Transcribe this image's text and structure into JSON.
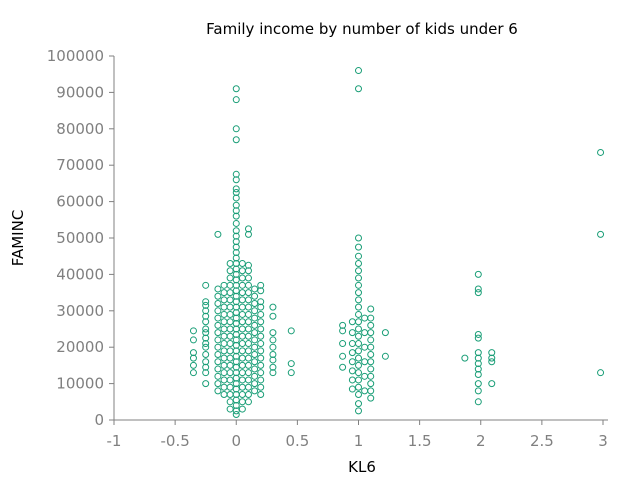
{
  "chart_data": {
    "type": "scatter",
    "title": "Family income by number of kids under 6",
    "xlabel": "KL6",
    "ylabel": "FAMINC",
    "xlim": [
      -1,
      3
    ],
    "ylim": [
      0,
      100000
    ],
    "xticks": [
      "-1",
      "-0.5",
      "0",
      "0.5",
      "1",
      "1.5",
      "2",
      "2.5",
      "3"
    ],
    "yticks": [
      "0",
      "10000",
      "20000",
      "30000",
      "40000",
      "50000",
      "60000",
      "70000",
      "80000",
      "90000",
      "100000"
    ],
    "grid": false,
    "marker": "open-circle",
    "color": "#1a9e77",
    "series": [
      {
        "points": [
          [
            -0.35,
            13000
          ],
          [
            -0.35,
            15000
          ],
          [
            -0.35,
            17000
          ],
          [
            -0.35,
            18500
          ],
          [
            -0.35,
            22000
          ],
          [
            -0.35,
            24500
          ],
          [
            -0.25,
            10000
          ],
          [
            -0.25,
            13000
          ],
          [
            -0.25,
            14500
          ],
          [
            -0.25,
            16000
          ],
          [
            -0.25,
            18000
          ],
          [
            -0.25,
            20000
          ],
          [
            -0.25,
            21000
          ],
          [
            -0.25,
            22500
          ],
          [
            -0.25,
            24000
          ],
          [
            -0.25,
            25000
          ],
          [
            -0.25,
            27000
          ],
          [
            -0.25,
            28500
          ],
          [
            -0.25,
            30000
          ],
          [
            -0.25,
            31500
          ],
          [
            -0.25,
            32500
          ],
          [
            -0.25,
            37000
          ],
          [
            -0.15,
            8000
          ],
          [
            -0.15,
            10000
          ],
          [
            -0.15,
            12000
          ],
          [
            -0.15,
            14000
          ],
          [
            -0.15,
            16000
          ],
          [
            -0.15,
            18000
          ],
          [
            -0.15,
            20000
          ],
          [
            -0.15,
            22000
          ],
          [
            -0.15,
            24000
          ],
          [
            -0.15,
            26000
          ],
          [
            -0.15,
            28000
          ],
          [
            -0.15,
            30000
          ],
          [
            -0.15,
            32000
          ],
          [
            -0.15,
            34000
          ],
          [
            -0.15,
            36000
          ],
          [
            -0.15,
            51000
          ],
          [
            -0.1,
            7000
          ],
          [
            -0.1,
            9000
          ],
          [
            -0.1,
            11000
          ],
          [
            -0.1,
            13000
          ],
          [
            -0.1,
            15000
          ],
          [
            -0.1,
            17000
          ],
          [
            -0.1,
            19000
          ],
          [
            -0.1,
            21000
          ],
          [
            -0.1,
            23000
          ],
          [
            -0.1,
            25000
          ],
          [
            -0.1,
            27000
          ],
          [
            -0.1,
            29000
          ],
          [
            -0.1,
            31000
          ],
          [
            -0.1,
            33000
          ],
          [
            -0.1,
            35000
          ],
          [
            -0.1,
            37000
          ],
          [
            -0.05,
            3000
          ],
          [
            -0.05,
            5000
          ],
          [
            -0.05,
            7000
          ],
          [
            -0.05,
            9000
          ],
          [
            -0.05,
            11000
          ],
          [
            -0.05,
            13000
          ],
          [
            -0.05,
            15000
          ],
          [
            -0.05,
            17000
          ],
          [
            -0.05,
            19000
          ],
          [
            -0.05,
            21000
          ],
          [
            -0.05,
            23000
          ],
          [
            -0.05,
            25000
          ],
          [
            -0.05,
            27000
          ],
          [
            -0.05,
            29000
          ],
          [
            -0.05,
            31000
          ],
          [
            -0.05,
            33000
          ],
          [
            -0.05,
            35000
          ],
          [
            -0.05,
            37000
          ],
          [
            -0.05,
            39000
          ],
          [
            -0.05,
            41000
          ],
          [
            -0.05,
            43000
          ],
          [
            0,
            1500
          ],
          [
            0,
            2500
          ],
          [
            0,
            4000
          ],
          [
            0,
            5500
          ],
          [
            0,
            7000
          ],
          [
            0,
            8500
          ],
          [
            0,
            10000
          ],
          [
            0,
            11500
          ],
          [
            0,
            13000
          ],
          [
            0,
            14500
          ],
          [
            0,
            16000
          ],
          [
            0,
            17500
          ],
          [
            0,
            19000
          ],
          [
            0,
            20500
          ],
          [
            0,
            22000
          ],
          [
            0,
            23500
          ],
          [
            0,
            25000
          ],
          [
            0,
            26500
          ],
          [
            0,
            28000
          ],
          [
            0,
            29500
          ],
          [
            0,
            31000
          ],
          [
            0,
            32500
          ],
          [
            0,
            34000
          ],
          [
            0,
            35500
          ],
          [
            0,
            37000
          ],
          [
            0,
            38500
          ],
          [
            0,
            40000
          ],
          [
            0,
            41500
          ],
          [
            0,
            43000
          ],
          [
            0,
            44500
          ],
          [
            0,
            46000
          ],
          [
            0,
            47500
          ],
          [
            0,
            49000
          ],
          [
            0,
            50500
          ],
          [
            0,
            52000
          ],
          [
            0,
            54000
          ],
          [
            0,
            56000
          ],
          [
            0,
            57500
          ],
          [
            0,
            59000
          ],
          [
            0,
            61000
          ],
          [
            0,
            62500
          ],
          [
            0,
            63500
          ],
          [
            0,
            66000
          ],
          [
            0,
            67500
          ],
          [
            0,
            77000
          ],
          [
            0,
            80000
          ],
          [
            0,
            88000
          ],
          [
            0,
            91000
          ],
          [
            0.05,
            3000
          ],
          [
            0.05,
            5000
          ],
          [
            0.05,
            7000
          ],
          [
            0.05,
            9000
          ],
          [
            0.05,
            11000
          ],
          [
            0.05,
            13000
          ],
          [
            0.05,
            15000
          ],
          [
            0.05,
            17000
          ],
          [
            0.05,
            19000
          ],
          [
            0.05,
            21000
          ],
          [
            0.05,
            23000
          ],
          [
            0.05,
            25000
          ],
          [
            0.05,
            27000
          ],
          [
            0.05,
            29000
          ],
          [
            0.05,
            31000
          ],
          [
            0.05,
            33000
          ],
          [
            0.05,
            35000
          ],
          [
            0.05,
            37000
          ],
          [
            0.05,
            39000
          ],
          [
            0.05,
            41000
          ],
          [
            0.05,
            43000
          ],
          [
            0.1,
            5000
          ],
          [
            0.1,
            7000
          ],
          [
            0.1,
            9000
          ],
          [
            0.1,
            11000
          ],
          [
            0.1,
            13000
          ],
          [
            0.1,
            15000
          ],
          [
            0.1,
            17000
          ],
          [
            0.1,
            19000
          ],
          [
            0.1,
            21000
          ],
          [
            0.1,
            23000
          ],
          [
            0.1,
            25000
          ],
          [
            0.1,
            27000
          ],
          [
            0.1,
            29000
          ],
          [
            0.1,
            31000
          ],
          [
            0.1,
            33000
          ],
          [
            0.1,
            35000
          ],
          [
            0.1,
            37000
          ],
          [
            0.1,
            39000
          ],
          [
            0.1,
            41000
          ],
          [
            0.1,
            42500
          ],
          [
            0.1,
            51000
          ],
          [
            0.1,
            52500
          ],
          [
            0.15,
            8000
          ],
          [
            0.15,
            10000
          ],
          [
            0.15,
            12000
          ],
          [
            0.15,
            14000
          ],
          [
            0.15,
            16000
          ],
          [
            0.15,
            18000
          ],
          [
            0.15,
            20000
          ],
          [
            0.15,
            22000
          ],
          [
            0.15,
            24000
          ],
          [
            0.15,
            26000
          ],
          [
            0.15,
            28000
          ],
          [
            0.15,
            30000
          ],
          [
            0.15,
            32000
          ],
          [
            0.15,
            34000
          ],
          [
            0.15,
            36000
          ],
          [
            0.2,
            7000
          ],
          [
            0.2,
            9000
          ],
          [
            0.2,
            11000
          ],
          [
            0.2,
            13000
          ],
          [
            0.2,
            15000
          ],
          [
            0.2,
            17000
          ],
          [
            0.2,
            19000
          ],
          [
            0.2,
            21000
          ],
          [
            0.2,
            23000
          ],
          [
            0.2,
            25000
          ],
          [
            0.2,
            27000
          ],
          [
            0.2,
            29000
          ],
          [
            0.2,
            31000
          ],
          [
            0.2,
            32500
          ],
          [
            0.2,
            35500
          ],
          [
            0.2,
            37000
          ],
          [
            0.3,
            13000
          ],
          [
            0.3,
            14500
          ],
          [
            0.3,
            16500
          ],
          [
            0.3,
            18000
          ],
          [
            0.3,
            20000
          ],
          [
            0.3,
            22000
          ],
          [
            0.3,
            24000
          ],
          [
            0.3,
            28500
          ],
          [
            0.3,
            31000
          ],
          [
            0.45,
            13000
          ],
          [
            0.45,
            15500
          ],
          [
            0.45,
            24500
          ],
          [
            0.87,
            14500
          ],
          [
            0.87,
            17500
          ],
          [
            0.87,
            21000
          ],
          [
            0.87,
            24500
          ],
          [
            0.87,
            26000
          ],
          [
            0.95,
            8500
          ],
          [
            0.95,
            11000
          ],
          [
            0.95,
            13500
          ],
          [
            0.95,
            16000
          ],
          [
            0.95,
            18500
          ],
          [
            0.95,
            21000
          ],
          [
            0.95,
            24000
          ],
          [
            0.95,
            27000
          ],
          [
            1,
            2500
          ],
          [
            1,
            4500
          ],
          [
            1,
            7000
          ],
          [
            1,
            9000
          ],
          [
            1,
            11000
          ],
          [
            1,
            13000
          ],
          [
            1,
            15000
          ],
          [
            1,
            17000
          ],
          [
            1,
            19000
          ],
          [
            1,
            21000
          ],
          [
            1,
            23000
          ],
          [
            1,
            25000
          ],
          [
            1,
            27000
          ],
          [
            1,
            29000
          ],
          [
            1,
            31000
          ],
          [
            1,
            33000
          ],
          [
            1,
            35000
          ],
          [
            1,
            37000
          ],
          [
            1,
            39000
          ],
          [
            1,
            41000
          ],
          [
            1,
            43000
          ],
          [
            1,
            45000
          ],
          [
            1,
            47500
          ],
          [
            1,
            50000
          ],
          [
            1,
            91000
          ],
          [
            1,
            96000
          ],
          [
            1.05,
            8000
          ],
          [
            1.05,
            12000
          ],
          [
            1.05,
            16000
          ],
          [
            1.05,
            20000
          ],
          [
            1.05,
            24000
          ],
          [
            1.05,
            28000
          ],
          [
            1.1,
            6000
          ],
          [
            1.1,
            8000
          ],
          [
            1.1,
            10000
          ],
          [
            1.1,
            12000
          ],
          [
            1.1,
            14000
          ],
          [
            1.1,
            16000
          ],
          [
            1.1,
            18000
          ],
          [
            1.1,
            20000
          ],
          [
            1.1,
            22000
          ],
          [
            1.1,
            24000
          ],
          [
            1.1,
            26000
          ],
          [
            1.1,
            28000
          ],
          [
            1.1,
            30500
          ],
          [
            1.22,
            17500
          ],
          [
            1.22,
            24000
          ],
          [
            1.87,
            17000
          ],
          [
            1.98,
            5000
          ],
          [
            1.98,
            8000
          ],
          [
            1.98,
            10000
          ],
          [
            1.98,
            12500
          ],
          [
            1.98,
            14000
          ],
          [
            1.98,
            15500
          ],
          [
            1.98,
            17000
          ],
          [
            1.98,
            18500
          ],
          [
            1.98,
            22500
          ],
          [
            1.98,
            23500
          ],
          [
            1.98,
            35000
          ],
          [
            1.98,
            36000
          ],
          [
            1.98,
            40000
          ],
          [
            2.09,
            10000
          ],
          [
            2.09,
            16000
          ],
          [
            2.09,
            17000
          ],
          [
            2.09,
            18500
          ],
          [
            2.98,
            13000
          ],
          [
            2.98,
            51000
          ],
          [
            2.98,
            73500
          ]
        ]
      }
    ]
  }
}
